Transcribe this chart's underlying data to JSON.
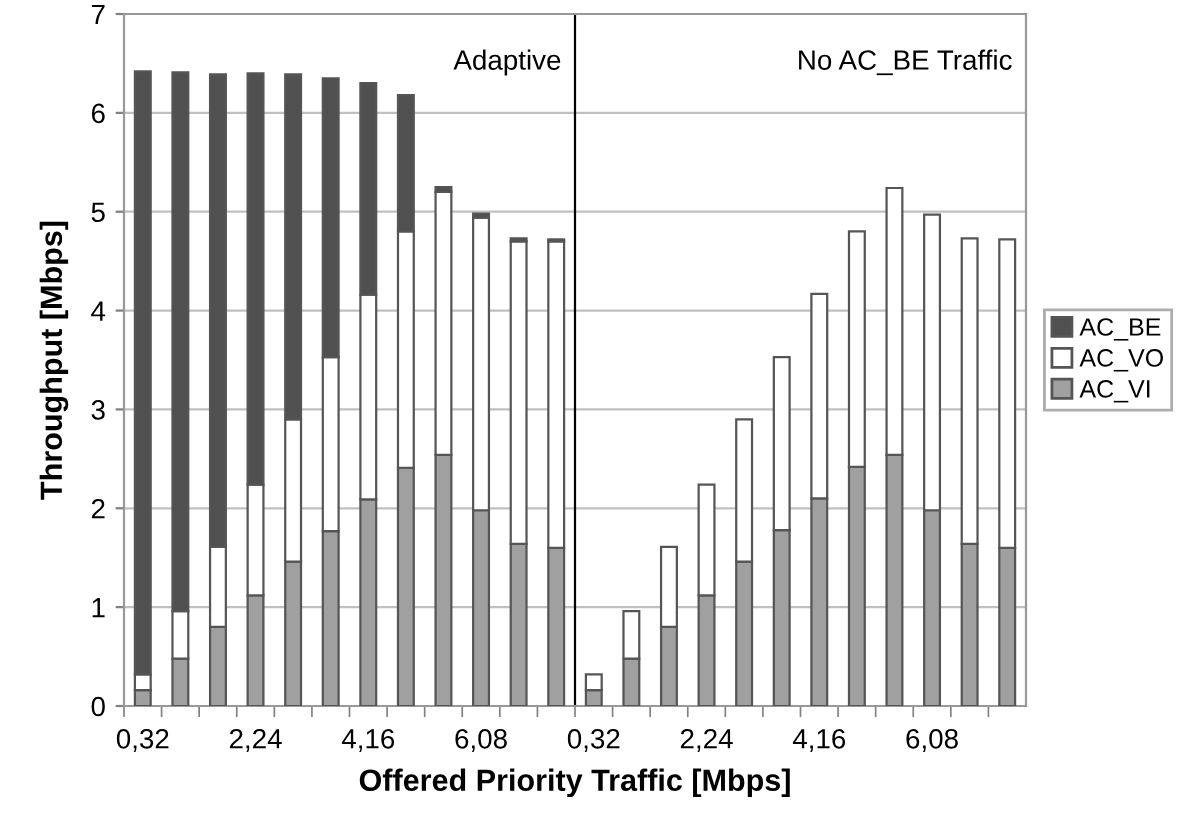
{
  "chart_data": [
    {
      "type": "bar",
      "stacked": true,
      "xlabel": "Offered Priority Traffic [Mbps]",
      "ylabel": "Throughput [Mbps]",
      "annotations": [
        "Adaptive"
      ],
      "categories": [
        "0,32",
        null,
        null,
        "2,24",
        null,
        null,
        "4,16",
        null,
        null,
        "6,08",
        null,
        null
      ],
      "series": [
        {
          "name": "AC_VI",
          "color": "#a0a0a0",
          "values": [
            0.16,
            0.48,
            0.8,
            1.12,
            1.46,
            1.77,
            2.09,
            2.41,
            2.54,
            1.98,
            1.64,
            1.6
          ]
        },
        {
          "name": "AC_VO",
          "color": "#ffffff",
          "values": [
            0.16,
            0.48,
            0.81,
            1.12,
            1.44,
            1.76,
            2.07,
            2.39,
            2.66,
            2.96,
            3.06,
            3.1
          ]
        },
        {
          "name": "AC_BE",
          "color": "#505050",
          "values": [
            6.1,
            5.45,
            4.78,
            4.16,
            3.49,
            2.82,
            2.14,
            1.38,
            0.05,
            0.04,
            0.03,
            0.02
          ]
        }
      ],
      "ylim": [
        0,
        7
      ],
      "yticks": [
        0,
        1,
        2,
        3,
        4,
        5,
        6,
        7
      ],
      "grid": "y",
      "legend": "right"
    },
    {
      "type": "bar",
      "stacked": true,
      "annotations": [
        "No AC_BE Traffic"
      ],
      "categories": [
        "0,32",
        null,
        null,
        "2,24",
        null,
        null,
        "4,16",
        null,
        null,
        "6,08",
        null,
        null
      ],
      "series": [
        {
          "color": "#a0a0a0",
          "values": [
            0.16,
            0.48,
            0.8,
            1.12,
            1.46,
            1.78,
            2.1,
            2.42,
            2.54,
            1.98,
            1.64,
            1.6
          ]
        },
        {
          "color": "#ffffff",
          "values": [
            0.16,
            0.48,
            0.81,
            1.12,
            1.44,
            1.75,
            2.07,
            2.38,
            2.7,
            2.99,
            3.09,
            3.12
          ]
        }
      ],
      "ylim": [
        0,
        7
      ],
      "yticks": [
        0,
        1,
        2,
        3,
        4,
        5,
        6,
        7
      ],
      "grid": "y",
      "tick_labels": "x"
    }
  ]
}
